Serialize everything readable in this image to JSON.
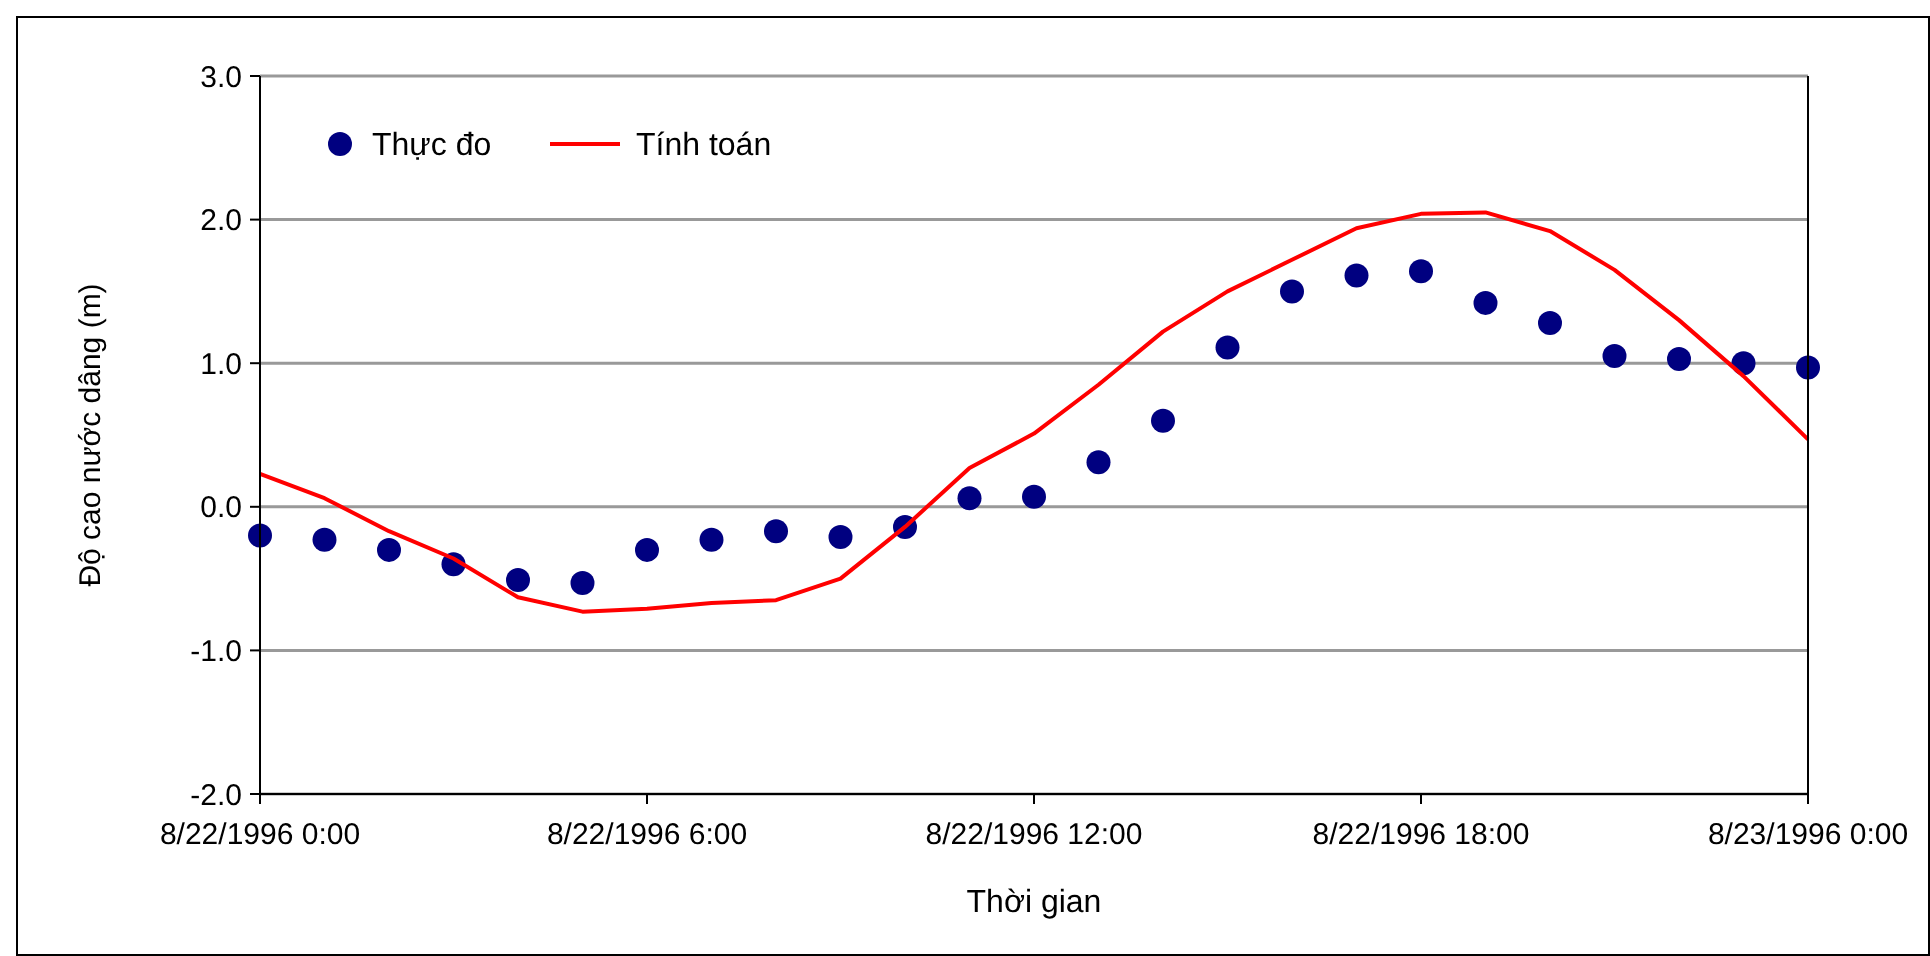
{
  "chart_data": {
    "type": "line",
    "xlabel": "Thời gian",
    "ylabel": "Độ cao nước dâng (m)",
    "x": [
      "1996-08-22T00:00",
      "1996-08-22T01:00",
      "1996-08-22T02:00",
      "1996-08-22T03:00",
      "1996-08-22T04:00",
      "1996-08-22T05:00",
      "1996-08-22T06:00",
      "1996-08-22T07:00",
      "1996-08-22T08:00",
      "1996-08-22T09:00",
      "1996-08-22T10:00",
      "1996-08-22T11:00",
      "1996-08-22T12:00",
      "1996-08-22T13:00",
      "1996-08-22T14:00",
      "1996-08-22T15:00",
      "1996-08-22T16:00",
      "1996-08-22T17:00",
      "1996-08-22T18:00",
      "1996-08-22T19:00",
      "1996-08-22T20:00",
      "1996-08-22T21:00",
      "1996-08-22T22:00",
      "1996-08-22T23:00",
      "1996-08-23T00:00"
    ],
    "series": [
      {
        "name": "Thực đo",
        "type": "scatter",
        "color": "#000080",
        "marker": "circle",
        "values": [
          -0.2,
          -0.23,
          -0.3,
          -0.4,
          -0.51,
          -0.53,
          -0.3,
          -0.23,
          -0.17,
          -0.21,
          -0.14,
          0.06,
          0.07,
          0.31,
          0.6,
          1.11,
          1.5,
          1.61,
          1.64,
          1.42,
          1.28,
          1.05,
          1.03,
          1.0,
          0.97
        ]
      },
      {
        "name": "Tính toán",
        "color": "#ff0000",
        "line_style": "solid",
        "values": [
          0.23,
          0.06,
          -0.17,
          -0.36,
          -0.63,
          -0.73,
          -0.71,
          -0.67,
          -0.65,
          -0.5,
          -0.14,
          0.27,
          0.51,
          0.85,
          1.22,
          1.5,
          1.72,
          1.94,
          2.04,
          2.05,
          1.92,
          1.65,
          1.3,
          0.91,
          0.47
        ]
      }
    ],
    "xlim": [
      "1996-08-22T00:00",
      "1996-08-23T00:00"
    ],
    "xticks": [
      {
        "value": "1996-08-22T00:00",
        "label": "8/22/1996 0:00"
      },
      {
        "value": "1996-08-22T06:00",
        "label": "8/22/1996 6:00"
      },
      {
        "value": "1996-08-22T12:00",
        "label": "8/22/1996 12:00"
      },
      {
        "value": "1996-08-22T18:00",
        "label": "8/22/1996 18:00"
      },
      {
        "value": "1996-08-23T00:00",
        "label": "8/23/1996 0:00"
      }
    ],
    "ylim": [
      -2,
      3
    ],
    "yticks": [
      {
        "value": -2,
        "label": "-2.0"
      },
      {
        "value": -1,
        "label": "-1.0"
      },
      {
        "value": 0,
        "label": "0.0"
      },
      {
        "value": 1,
        "label": "1.0"
      },
      {
        "value": 2,
        "label": "2.0"
      },
      {
        "value": 3,
        "label": "3.0"
      }
    ],
    "grid": "y",
    "legend": "top left"
  }
}
